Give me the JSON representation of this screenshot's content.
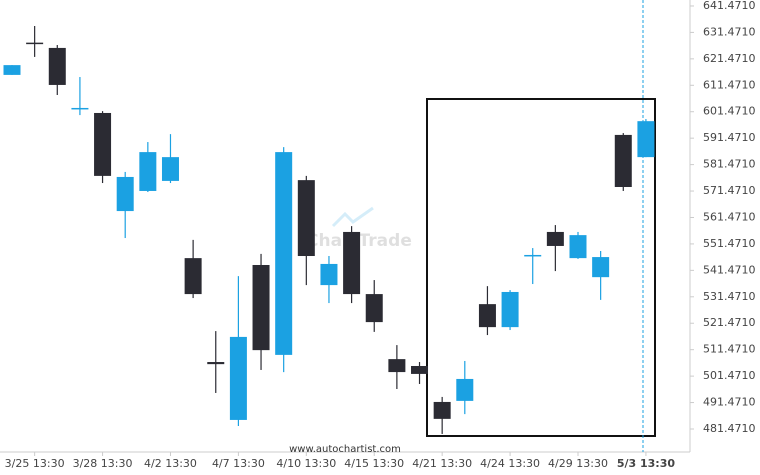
{
  "chart_data": {
    "type": "candlestick",
    "source": "www.autochartist.com",
    "watermark": "ChartTrade",
    "categories": [
      null,
      "3/25 13:30",
      null,
      null,
      "3/28 13:30",
      null,
      null,
      "4/2 13:30",
      null,
      null,
      "4/7 13:30",
      null,
      null,
      "4/10 13:30",
      null,
      null,
      "4/15 13:30",
      null,
      null,
      "4/21 13:30",
      null,
      null,
      "4/24 13:30",
      null,
      null,
      "4/29 13:30",
      null,
      null,
      "5/3 13:30"
    ],
    "open": [
      615.4,
      627.6,
      625.6,
      602.7,
      601.0,
      563.9,
      571.5,
      575.3,
      546.1,
      506.8,
      484.9,
      543.5,
      509.5,
      575.6,
      535.9,
      556.0,
      532.5,
      507.9,
      505.3,
      491.7,
      492.1,
      528.7,
      520.0,
      546.9,
      556.0,
      546.1,
      538.9,
      592.7,
      584.3
    ],
    "high": [
      619.1,
      633.9,
      626.7,
      614.6,
      601.7,
      578.7,
      590.0,
      593.0,
      553.0,
      518.5,
      539.3,
      547.7,
      588.1,
      577.2,
      546.9,
      558.2,
      537.8,
      513.2,
      506.8,
      493.6,
      507.2,
      535.5,
      534.0,
      549.9,
      558.6,
      556.0,
      548.8,
      593.4,
      598.7
    ],
    "low": [
      615.4,
      622.2,
      607.8,
      600.2,
      574.5,
      553.7,
      571.1,
      574.5,
      531.0,
      495.1,
      482.6,
      503.8,
      503.0,
      535.9,
      529.1,
      529.1,
      518.2,
      496.6,
      498.5,
      479.6,
      487.1,
      517.0,
      518.9,
      536.3,
      541.2,
      545.8,
      530.3,
      571.5,
      584.3
    ],
    "close": [
      619.1,
      627.2,
      611.6,
      602.9,
      577.2,
      576.8,
      586.2,
      584.3,
      532.5,
      506.0,
      516.3,
      511.3,
      586.2,
      546.9,
      543.9,
      532.5,
      521.9,
      503.0,
      502.3,
      485.3,
      500.4,
      520.0,
      533.3,
      547.3,
      550.7,
      554.8,
      546.5,
      573.0,
      597.9
    ],
    "up_color": "#1ba1e2",
    "down_color": "#2b2b33",
    "ylim": [
      472.77,
      643.73
    ],
    "yticks": [
      {
        "value": 481.471,
        "label": "481.4710"
      },
      {
        "value": 491.471,
        "label": "491.4710"
      },
      {
        "value": 501.471,
        "label": "501.4710"
      },
      {
        "value": 511.471,
        "label": "511.4710"
      },
      {
        "value": 521.471,
        "label": "521.4710"
      },
      {
        "value": 531.471,
        "label": "531.4710"
      },
      {
        "value": 541.471,
        "label": "541.4710"
      },
      {
        "value": 551.471,
        "label": "551.4710"
      },
      {
        "value": 561.471,
        "label": "561.4710"
      },
      {
        "value": 571.471,
        "label": "571.4710"
      },
      {
        "value": 581.471,
        "label": "581.4710"
      },
      {
        "value": 591.471,
        "label": "591.4710"
      },
      {
        "value": 601.471,
        "label": "601.4710"
      },
      {
        "value": 611.471,
        "label": "611.4710"
      },
      {
        "value": 621.471,
        "label": "621.4710"
      },
      {
        "value": 631.471,
        "label": "631.4710"
      },
      {
        "value": 641.471,
        "label": "641.4710"
      }
    ]
  }
}
